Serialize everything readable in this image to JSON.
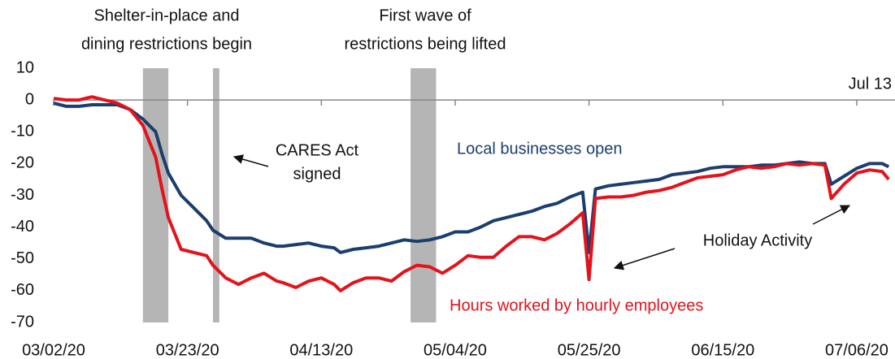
{
  "chart_data": {
    "type": "line",
    "x": [
      "2020-03-02",
      "2020-03-04",
      "2020-03-06",
      "2020-03-08",
      "2020-03-10",
      "2020-03-12",
      "2020-03-14",
      "2020-03-16",
      "2020-03-17",
      "2020-03-18",
      "2020-03-19",
      "2020-03-20",
      "2020-03-22",
      "2020-03-24",
      "2020-03-26",
      "2020-03-27",
      "2020-03-29",
      "2020-03-31",
      "2020-04-02",
      "2020-04-04",
      "2020-04-06",
      "2020-04-07",
      "2020-04-09",
      "2020-04-11",
      "2020-04-13",
      "2020-04-15",
      "2020-04-16",
      "2020-04-18",
      "2020-04-20",
      "2020-04-22",
      "2020-04-24",
      "2020-04-26",
      "2020-04-28",
      "2020-04-30",
      "2020-05-02",
      "2020-05-04",
      "2020-05-06",
      "2020-05-08",
      "2020-05-10",
      "2020-05-12",
      "2020-05-14",
      "2020-05-16",
      "2020-05-18",
      "2020-05-20",
      "2020-05-22",
      "2020-05-24",
      "2020-05-25",
      "2020-05-26",
      "2020-05-28",
      "2020-05-30",
      "2020-06-01",
      "2020-06-03",
      "2020-06-05",
      "2020-06-07",
      "2020-06-09",
      "2020-06-11",
      "2020-06-13",
      "2020-06-15",
      "2020-06-17",
      "2020-06-19",
      "2020-06-21",
      "2020-06-23",
      "2020-06-25",
      "2020-06-27",
      "2020-06-29",
      "2020-07-01",
      "2020-07-02",
      "2020-07-04",
      "2020-07-06",
      "2020-07-08",
      "2020-07-10",
      "2020-07-11"
    ],
    "series": [
      {
        "name": "Local businesses open",
        "color": "#1c3e6e",
        "values": [
          -1,
          -2,
          -2,
          -1.5,
          -1.5,
          -1.5,
          -3,
          -6,
          -8,
          -10,
          -17,
          -23,
          -30,
          -34,
          -38,
          -41,
          -43.5,
          -43.5,
          -43.5,
          -45,
          -46,
          -46,
          -45.5,
          -45,
          -46,
          -46.5,
          -48,
          -47,
          -46.5,
          -46,
          -45,
          -44,
          -44.5,
          -44,
          -43,
          -41.5,
          -41.5,
          -40,
          -38,
          -37,
          -36,
          -35,
          -33.5,
          -32.5,
          -30.5,
          -29,
          -48,
          -28,
          -27,
          -26.5,
          -26,
          -25.5,
          -25,
          -23.5,
          -23,
          -22.5,
          -21.5,
          -21,
          -21,
          -21,
          -20.5,
          -20.5,
          -20,
          -19.5,
          -20,
          -20,
          -26.5,
          -24,
          -21.5,
          -20,
          -20,
          -21
        ]
      },
      {
        "name": "Hours worked by hourly employees",
        "color": "#e3121b",
        "values": [
          0.5,
          0,
          0,
          1,
          0,
          -1,
          -3,
          -8,
          -13,
          -18,
          -28,
          -37,
          -47,
          -48,
          -49,
          -52,
          -56,
          -58,
          -56,
          -54.5,
          -57,
          -57.5,
          -59,
          -57,
          -56,
          -58,
          -60,
          -57.5,
          -56,
          -56,
          -57,
          -54,
          -52,
          -52.5,
          -54.5,
          -52,
          -49,
          -49.5,
          -49.5,
          -46,
          -43,
          -43,
          -44,
          -42,
          -39,
          -35.5,
          -56.5,
          -31,
          -30.5,
          -30.5,
          -30,
          -29,
          -28.5,
          -27.5,
          -26,
          -24.5,
          -24,
          -23.5,
          -22,
          -21,
          -21.5,
          -21,
          -20,
          -20.5,
          -20,
          -20.5,
          -31,
          -26.5,
          -23,
          -22,
          -22.5,
          -25
        ]
      }
    ],
    "xlim": [
      "2020-03-02",
      "2020-07-12"
    ],
    "xticks": [
      {
        "value": "2020-03-02",
        "label": "03/02/20"
      },
      {
        "value": "2020-03-23",
        "label": "03/23/20"
      },
      {
        "value": "2020-04-13",
        "label": "04/13/20"
      },
      {
        "value": "2020-05-04",
        "label": "05/04/20"
      },
      {
        "value": "2020-05-25",
        "label": "05/25/20"
      },
      {
        "value": "2020-06-15",
        "label": "06/15/20"
      },
      {
        "value": "2020-07-06",
        "label": "07/06/20"
      }
    ],
    "ylim": [
      -70,
      10
    ],
    "yticks": [
      10,
      0,
      -10,
      -20,
      -30,
      -40,
      -50,
      -60,
      -70
    ],
    "shaded_ranges": [
      [
        "2020-03-16",
        "2020-03-20"
      ],
      [
        "2020-03-27",
        "2020-03-28"
      ],
      [
        "2020-04-27",
        "2020-05-01"
      ]
    ],
    "shade_color": "#b5b5b5",
    "annotations": {
      "shelter": [
        "Shelter-in-place and",
        "dining restrictions begin"
      ],
      "first_wave": [
        "First wave of",
        "restrictions being lifted"
      ],
      "cares": [
        "CARES Act",
        "signed"
      ],
      "holiday": "Holiday Activity",
      "end_date": "Jul 13"
    }
  }
}
